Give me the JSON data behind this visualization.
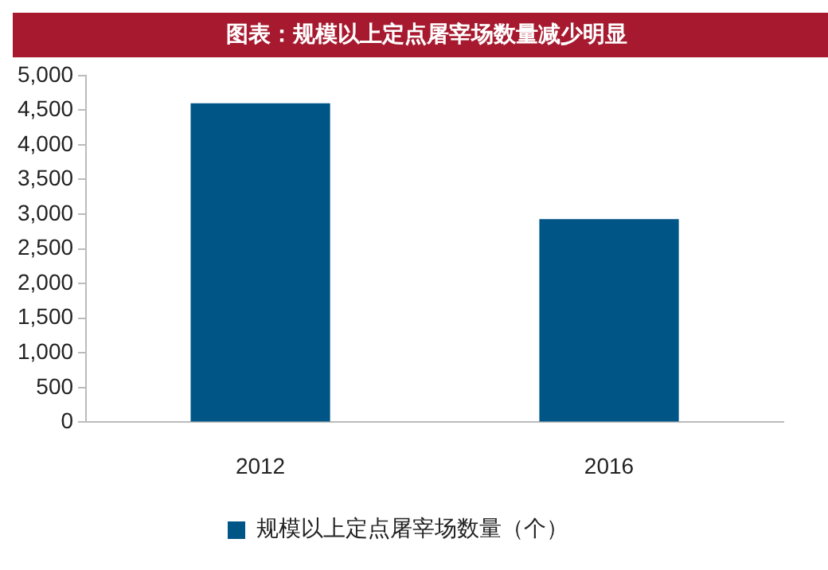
{
  "chart_data": {
    "type": "bar",
    "title": "图表：规模以上定点屠宰场数量减少明显",
    "categories": [
      "2012",
      "2016"
    ],
    "series": [
      {
        "name": "规模以上定点屠宰场数量（个）",
        "color": "#005587",
        "values": [
          4600,
          2930
        ]
      }
    ],
    "ylim": [
      0,
      5000
    ],
    "yticks": [
      0,
      500,
      {
        "value": 1000,
        "label": "1,000"
      },
      {
        "value": 1500,
        "label": "1,500"
      },
      {
        "value": 2000,
        "label": "2,000"
      },
      {
        "value": 2500,
        "label": "2,500"
      },
      {
        "value": 3000,
        "label": "3,000"
      },
      {
        "value": 3500,
        "label": "3,500"
      },
      {
        "value": 4000,
        "label": "4,000"
      },
      {
        "value": 4500,
        "label": "4,500"
      },
      {
        "value": 5000,
        "label": "5,000"
      }
    ],
    "grid": false,
    "legend": "bottom"
  }
}
